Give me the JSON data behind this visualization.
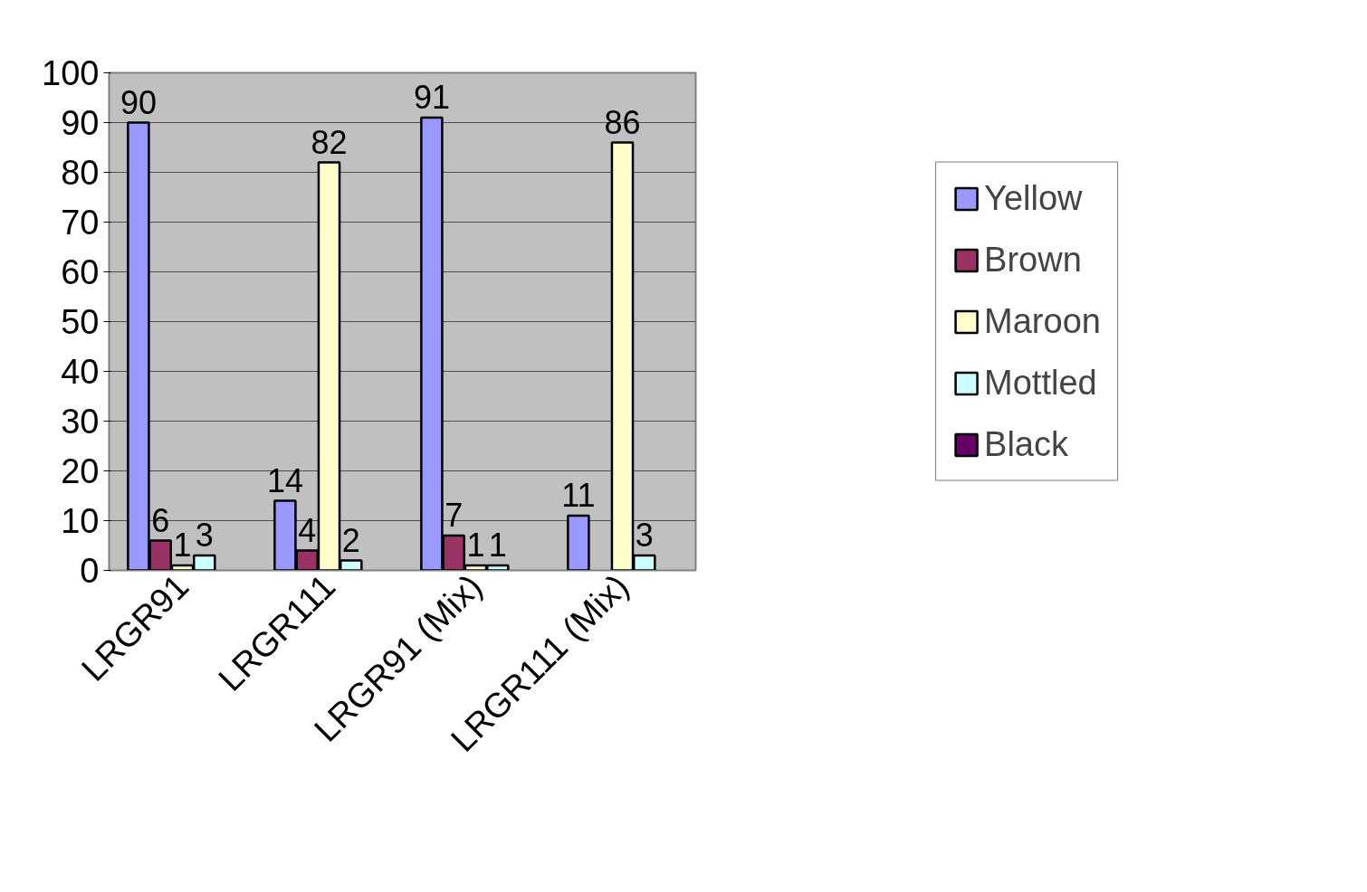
{
  "chart_data": {
    "type": "bar",
    "categories": [
      "LRGR91",
      "LRGR111",
      "LRGR91 (Mix)",
      "LRGR111 (Mix)"
    ],
    "series": [
      {
        "name": "Yellow",
        "color": "#9999ff",
        "values": [
          90,
          14,
          91,
          11
        ]
      },
      {
        "name": "Brown",
        "color": "#993366",
        "values": [
          6,
          4,
          7,
          null
        ]
      },
      {
        "name": "Maroon",
        "color": "#ffffcc",
        "values": [
          1,
          82,
          1,
          86
        ]
      },
      {
        "name": "Mottled",
        "color": "#ccffff",
        "values": [
          3,
          2,
          1,
          3
        ]
      },
      {
        "name": "Black",
        "color": "#660066",
        "values": [
          null,
          null,
          null,
          null
        ]
      }
    ],
    "ylim": [
      0,
      100
    ],
    "yticks": [
      0,
      10,
      20,
      30,
      40,
      50,
      60,
      70,
      80,
      90,
      100
    ],
    "grid": "y",
    "legend": "right",
    "data_labels": true
  }
}
